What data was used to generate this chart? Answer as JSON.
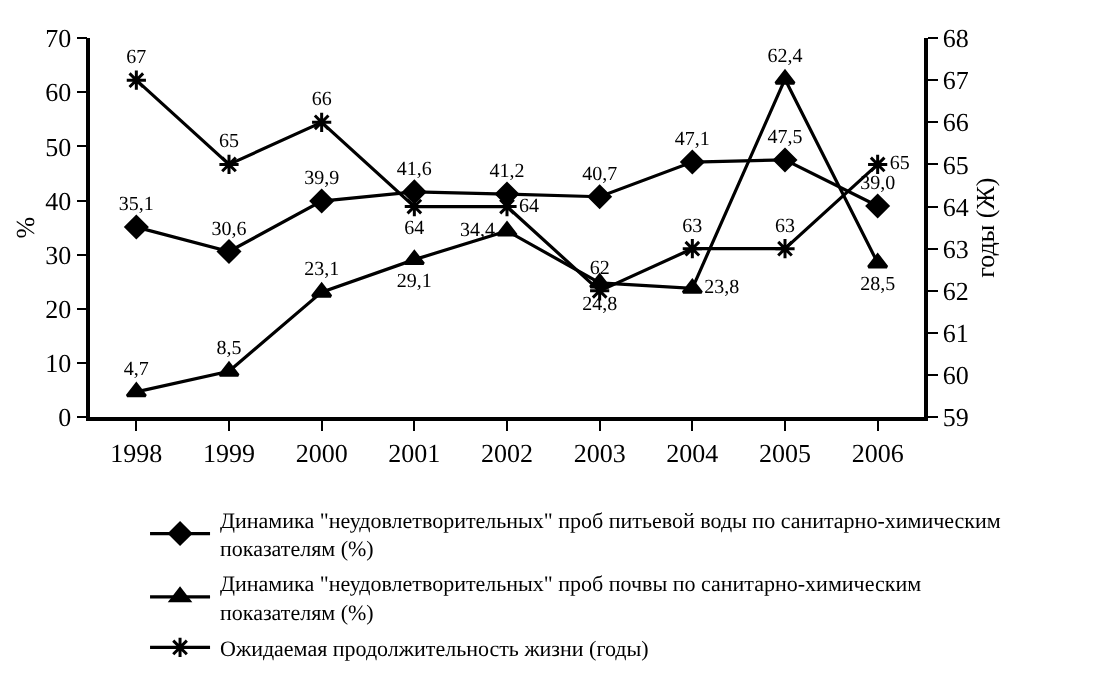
{
  "chart_data": {
    "type": "line",
    "ylabel": "%",
    "y2label": "годы (Ж)",
    "categories": [
      "1998",
      "1999",
      "2000",
      "2001",
      "2002",
      "2003",
      "2004",
      "2005",
      "2006"
    ],
    "ylim": [
      0,
      70
    ],
    "yticks": [
      0,
      10,
      20,
      30,
      40,
      50,
      60,
      70
    ],
    "y2lim": [
      59,
      68
    ],
    "y2ticks": [
      59,
      60,
      61,
      62,
      63,
      64,
      65,
      66,
      67,
      68
    ],
    "legend": "bottom",
    "line_style": "solid",
    "series": [
      {
        "name": "Динамика \"неудовлетворительных\" проб питьевой воды по санитарно-химическим показателям (%)",
        "color": "#000000",
        "marker": "diamond",
        "values": [
          35.1,
          30.6,
          39.9,
          41.6,
          41.2,
          40.7,
          47.1,
          47.5,
          39.0
        ],
        "value_labels": [
          "35,1",
          "30,6",
          "39,9",
          "41,6",
          "41,2",
          "40,7",
          "47,1",
          "47,5",
          "39,0"
        ]
      },
      {
        "name": "Динамика \"неудовлетворительных\" проб почвы по санитарно-химическим показателям (%)",
        "color": "#000000",
        "marker": "triangle",
        "values": [
          4.7,
          8.5,
          23.1,
          29.1,
          34.4,
          24.8,
          23.8,
          62.4,
          28.5
        ],
        "value_labels": [
          "4,7",
          "8,5",
          "23,1",
          "29,1",
          "34,4",
          "24,8",
          "23,8",
          "62,4",
          "28,5"
        ]
      },
      {
        "name": "Ожидаемая продолжительность жизни (годы)",
        "color": "#000000",
        "marker": "cross",
        "axis": "y2",
        "values": [
          67,
          65,
          66,
          64,
          64,
          62,
          63,
          63,
          65
        ],
        "value_labels": [
          "67",
          "65",
          "66",
          "64",
          "64",
          "62",
          "63",
          "63",
          "65"
        ]
      }
    ]
  }
}
